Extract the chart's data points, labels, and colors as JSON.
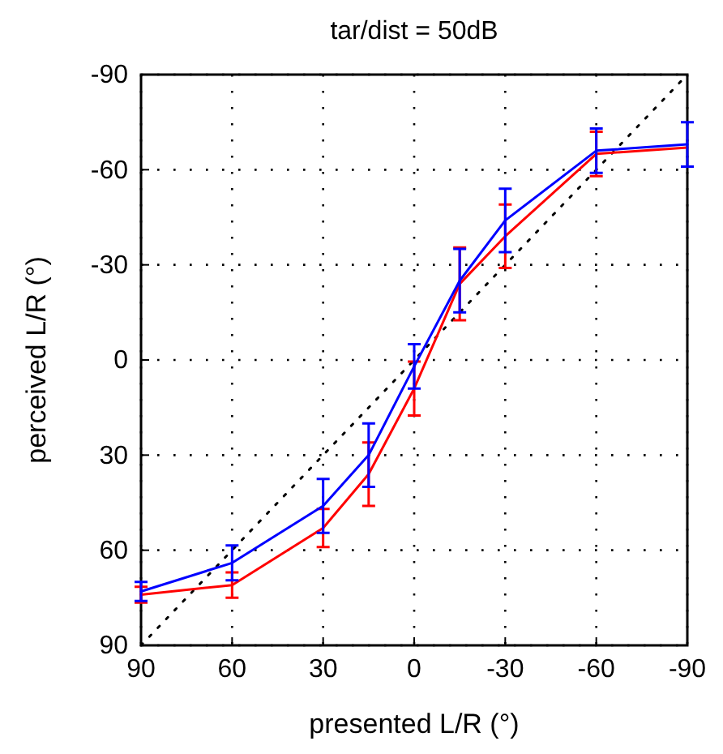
{
  "chart_data": {
    "type": "line",
    "title": "tar/dist = 50dB",
    "xlabel": "presented L/R (°)",
    "ylabel": "perceived L/R (°)",
    "xlim": [
      90,
      -90
    ],
    "ylim": [
      90,
      -90
    ],
    "xticks": [
      90,
      60,
      30,
      0,
      -30,
      -60,
      -90
    ],
    "yticks": [
      -90,
      -60,
      -30,
      0,
      30,
      60,
      90
    ],
    "grid": true,
    "series": [
      {
        "color": "#000000",
        "line_style": "dotted",
        "x": [
          90,
          -90
        ],
        "values": [
          90,
          -90
        ]
      },
      {
        "color": "#ff0000",
        "line_style": "solid",
        "x": [
          90,
          60,
          30,
          15,
          0,
          -15,
          -30,
          -60,
          -90
        ],
        "values": [
          74,
          71,
          53,
          36,
          9,
          -24,
          -39,
          -65,
          -67
        ],
        "errors": [
          2.5,
          4,
          6,
          10,
          8.5,
          11.5,
          10,
          7,
          null
        ]
      },
      {
        "color": "#0000ff",
        "line_style": "solid",
        "x": [
          90,
          60,
          30,
          15,
          0,
          -15,
          -30,
          -60,
          -90
        ],
        "values": [
          73,
          64,
          46,
          30,
          2,
          -25,
          -44,
          -66,
          -68
        ],
        "errors": [
          3,
          5.5,
          8.5,
          10,
          7,
          10,
          10,
          7,
          7
        ]
      }
    ]
  }
}
